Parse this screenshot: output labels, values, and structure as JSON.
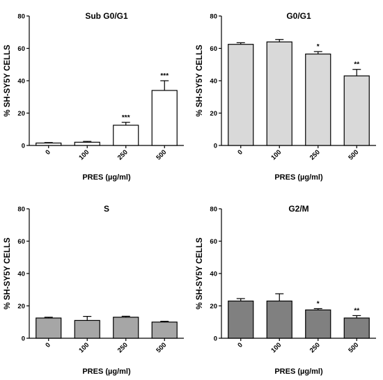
{
  "chart_data": [
    {
      "type": "bar",
      "title": "Sub G0/G1",
      "ylabel": "% SH-SY5Y CELLS",
      "xlabel": "PRES (µg/ml)",
      "categories": [
        "0",
        "100",
        "250",
        "500"
      ],
      "values": [
        1.5,
        2,
        12.5,
        34
      ],
      "errors": [
        0.3,
        0.5,
        1.8,
        6
      ],
      "significance": [
        "",
        "",
        "***",
        "***"
      ],
      "ylim": [
        0,
        80
      ],
      "yticks": [
        0,
        20,
        40,
        60,
        80
      ],
      "bar_color": "#ffffff"
    },
    {
      "type": "bar",
      "title": "G0/G1",
      "ylabel": "% SH-SY5Y CELLS",
      "xlabel": "PRES (µg/ml)",
      "categories": [
        "0",
        "100",
        "250",
        "500"
      ],
      "values": [
        62.5,
        64,
        56.5,
        43
      ],
      "errors": [
        1,
        1.5,
        1.5,
        4
      ],
      "significance": [
        "",
        "",
        "*",
        "**"
      ],
      "ylim": [
        0,
        80
      ],
      "yticks": [
        0,
        20,
        40,
        60,
        80
      ],
      "bar_color": "#d9d9d9"
    },
    {
      "type": "bar",
      "title": "S",
      "ylabel": "% SH-SY5Y CELLS",
      "xlabel": "PRES (µg/ml)",
      "categories": [
        "0",
        "100",
        "250",
        "500"
      ],
      "values": [
        12.5,
        11,
        13,
        10
      ],
      "errors": [
        0.5,
        2.5,
        0.6,
        0.5
      ],
      "significance": [
        "",
        "",
        "",
        ""
      ],
      "ylim": [
        0,
        80
      ],
      "yticks": [
        0,
        20,
        40,
        60,
        80
      ],
      "bar_color": "#a6a6a6"
    },
    {
      "type": "bar",
      "title": "G2/M",
      "ylabel": "% SH-SY5Y CELLS",
      "xlabel": "PRES (µg/ml)",
      "categories": [
        "0",
        "100",
        "250",
        "500"
      ],
      "values": [
        23,
        23,
        17.5,
        12.5
      ],
      "errors": [
        1.5,
        4.5,
        0.8,
        1.5
      ],
      "significance": [
        "",
        "",
        "*",
        "**"
      ],
      "ylim": [
        0,
        80
      ],
      "yticks": [
        0,
        20,
        40,
        60,
        80
      ],
      "bar_color": "#808080"
    }
  ]
}
